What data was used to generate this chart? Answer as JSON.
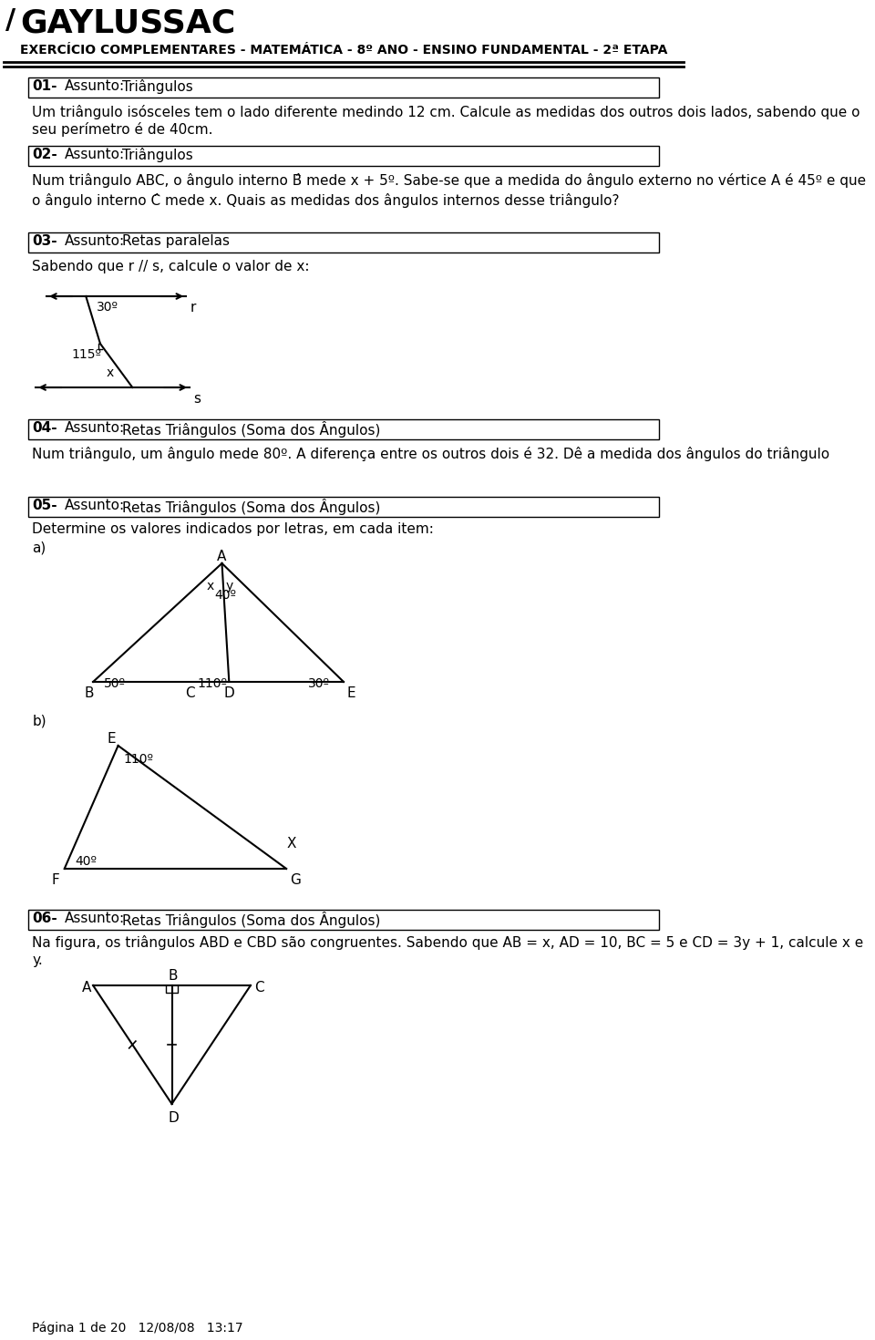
{
  "title": "EXERCÍCIO COMPLEMENTARES - MATEMÁTICA - 8º ANO - ENSINO FUNDAMENTAL - 2ª ETAPA",
  "school": "GAYLUSSAC",
  "bg_color": "#ffffff",
  "text_color": "#000000",
  "q01_num": "01-",
  "q01_subject_label": "Assunto:",
  "q01_subject": "Triângulos",
  "q01_text": "Um triângulo isósceles tem o lado diferente medindo 12 cm. Calcule as medidas dos outros dois lados, sabendo que o\nseu perímetro é de 40cm.",
  "q02_num": "02-",
  "q02_subject_label": "Assunto:",
  "q02_subject": "Triângulos",
  "q02_text1": "Num triângulo ABC, o ângulo interno B̂ mede x + 5º. Sabe-se que a medida do ângulo externo no vértice A é 45º e que",
  "q02_text2": "o ângulo interno Ĉ mede x. Quais as medidas dos ângulos internos desse triângulo?",
  "q03_num": "03-",
  "q03_subject_label": "Assunto:",
  "q03_subject": "Retas paralelas",
  "q03_text": "Sabendo que r // s, calcule o valor de x:",
  "q04_num": "04-",
  "q04_subject_label": "Assunto:",
  "q04_subject": "Retas Triângulos (Soma dos Ângulos)",
  "q04_text": "Num triângulo, um ângulo mede 80º. A diferença entre os outros dois é 32. Dê a medida dos ângulos do triângulo",
  "q05_num": "05-",
  "q05_subject_label": "Assunto:",
  "q05_subject": "Retas Triângulos (Soma dos Ângulos)",
  "q05_text": "Determine os valores indicados por letras, em cada item:",
  "q06_num": "06-",
  "q06_subject_label": "Assunto:",
  "q06_subject": "Retas Triângulos (Soma dos Ângulos)",
  "q06_text1": "Na figura, os triângulos ABD e CBD são congruentes. Sabendo que AB = x, AD = 10, BC = 5 e CD = 3y + 1, calcule x e",
  "q06_text2": "y.",
  "footer": "Página 1 de 20   12/08/08   13:17"
}
